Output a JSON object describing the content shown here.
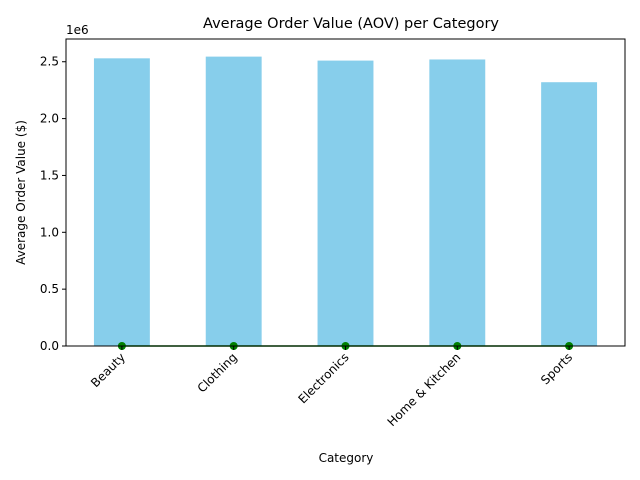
{
  "chart_data": {
    "type": "bar",
    "title": "Average Order Value (AOV) per Category",
    "xlabel": "Category",
    "ylabel": "Average Order Value ($)",
    "y_offset_label": "1e6",
    "categories": [
      "Beauty",
      "Clothing",
      "Electronics",
      "Home & Kitchen",
      "Sports"
    ],
    "series": [
      {
        "type": "bar",
        "values": [
          2530000,
          2545000,
          2510000,
          2520000,
          2320000
        ],
        "color": "#87CEEB"
      },
      {
        "type": "line",
        "values": [
          0,
          0,
          0,
          0,
          0
        ],
        "color": "#008000",
        "marker": "circle"
      }
    ],
    "ylim": [
      0,
      2700000
    ],
    "yticks": [
      0,
      500000,
      1000000,
      1500000,
      2000000,
      2500000
    ],
    "ytick_labels": [
      "0.0",
      "0.5",
      "1.0",
      "1.5",
      "2.0",
      "2.5"
    ],
    "grid": false,
    "legend": false
  }
}
